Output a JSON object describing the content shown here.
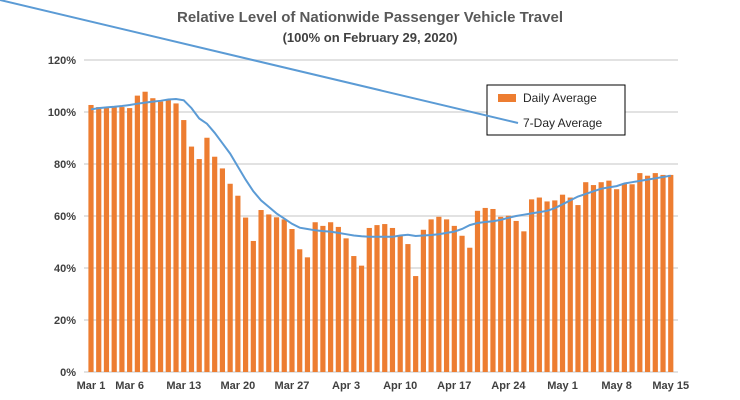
{
  "chart_data": {
    "type": "bar",
    "title": "Relative Level of Nationwide Passenger Vehicle Travel",
    "subtitle": "(100% on February 29, 2020)",
    "xlabel": "",
    "ylabel": "",
    "ylim": [
      0,
      120
    ],
    "yticks": [
      "0%",
      "20%",
      "40%",
      "60%",
      "80%",
      "100%",
      "120%"
    ],
    "xtick_labels": [
      "Mar 1",
      "Mar 6",
      "Mar 13",
      "Mar 20",
      "Mar 27",
      "Apr 3",
      "Apr 10",
      "Apr 17",
      "Apr 24",
      "May 1",
      "May 8",
      "May 15"
    ],
    "xtick_index": [
      0,
      5,
      12,
      19,
      26,
      33,
      40,
      47,
      54,
      61,
      68,
      75
    ],
    "grid": true,
    "legend_position": "top-right",
    "colors": {
      "bars": "#ED7D31",
      "line": "#5B9BD5",
      "grid": "#D9D9D9"
    },
    "series": [
      {
        "name": "Daily Average",
        "type": "bar",
        "values": [
          102.7,
          101.9,
          101.9,
          102.3,
          101.9,
          101.5,
          106.3,
          107.8,
          105.3,
          104,
          104.6,
          103.3,
          96.9,
          86.7,
          81.9,
          90.1,
          82.8,
          78.3,
          72.4,
          67.8,
          59.4,
          50.4,
          62.3,
          60.6,
          59.5,
          58.7,
          55,
          47.2,
          44.1,
          57.6,
          56.2,
          57.6,
          55.8,
          51.4,
          44.6,
          40.9,
          55.4,
          56.5,
          56.9,
          55.4,
          52.6,
          49.2,
          36.9,
          54.7,
          58.7,
          59.7,
          58.7,
          56.2,
          52.4,
          47.8,
          62,
          63.1,
          62.7,
          59.7,
          60.1,
          58.1,
          54.1,
          66.4,
          67.1,
          65.6,
          66,
          68.2,
          67.1,
          64.2,
          73,
          71.9,
          73,
          73.6,
          70.3,
          72.3,
          72.2,
          76.5,
          75.5,
          76.5,
          75.8,
          75.8
        ]
      },
      {
        "name": "7-Day Average",
        "type": "line",
        "values": [
          101,
          101.5,
          101.8,
          102,
          102.3,
          102.7,
          103.2,
          103.6,
          104,
          104.3,
          104.8,
          105,
          104.5,
          101.5,
          97.5,
          95.5,
          92,
          88,
          84,
          79,
          74,
          69.5,
          66,
          63.5,
          61,
          59,
          57,
          55.5,
          55,
          54.5,
          54.2,
          54,
          53.5,
          53,
          52.5,
          52.2,
          52,
          52,
          52,
          52,
          52.5,
          52.8,
          52.3,
          52.5,
          52.7,
          53,
          53.5,
          54,
          55,
          56.5,
          57.3,
          57.7,
          58,
          58.5,
          59.3,
          60,
          60.5,
          61,
          61.5,
          62,
          63,
          64.5,
          66,
          67.5,
          68.5,
          69.5,
          70.5,
          71,
          71.5,
          72.5,
          73,
          73.5,
          74,
          74.5,
          75,
          75.5
        ]
      }
    ]
  }
}
